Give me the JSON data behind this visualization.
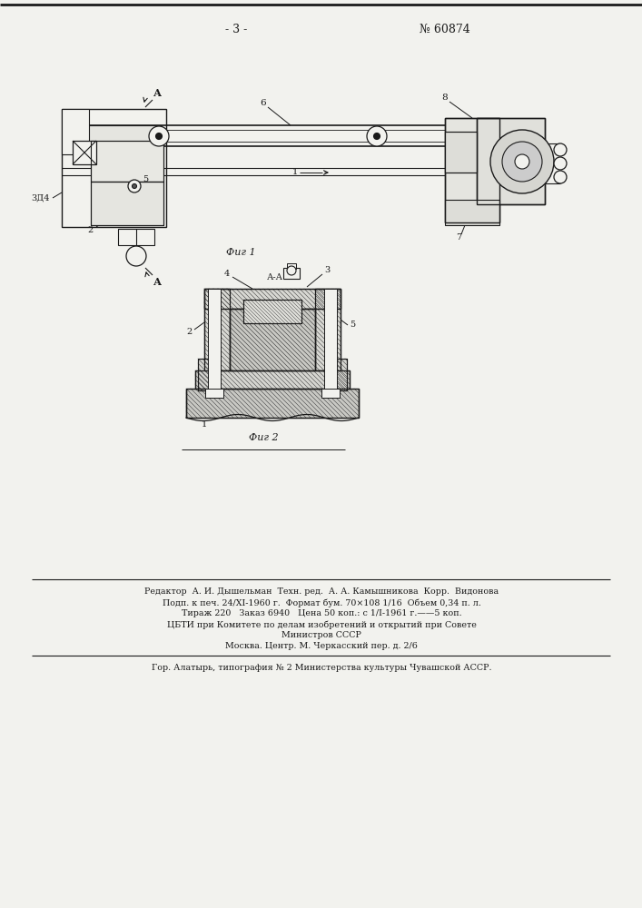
{
  "page_number": "- 3 -",
  "patent_number": "№ 60874",
  "fig1_caption": "Фиг 1",
  "fig2_caption": "Фиг 2",
  "section_label": "А-А",
  "label_A_top": "А",
  "label_A_bottom": "А",
  "label_3i4": "3Д4",
  "footer_line1": "Редактор  А. И. Дышельман  Техн. ред.  А. А. Камышникова  Корр.  Видонова",
  "footer_line2": "Подп. к печ. 24/XI-1960 г.  Формат бум. 70×108 1/16  Объем 0,34 п. л.",
  "footer_line3": "Тираж 220   Заказ 6940   Цена 50 коп.: с 1/І-1961 г.——5 коп.",
  "footer_line4": "ЦБТИ при Комитете по делам изобретений и открытий при Совете",
  "footer_line5": "Министров СССР",
  "footer_line6": "Москва. Центр. М. Черкасский пер. д. 2/6",
  "footer_line7": "Гор. Алатырь, типография № 2 Министерства культуры Чувашской АССР.",
  "bg_color": "#f2f2ee",
  "line_color": "#1a1a1a",
  "text_color": "#1a1a1a",
  "hatch_color": "#333333"
}
